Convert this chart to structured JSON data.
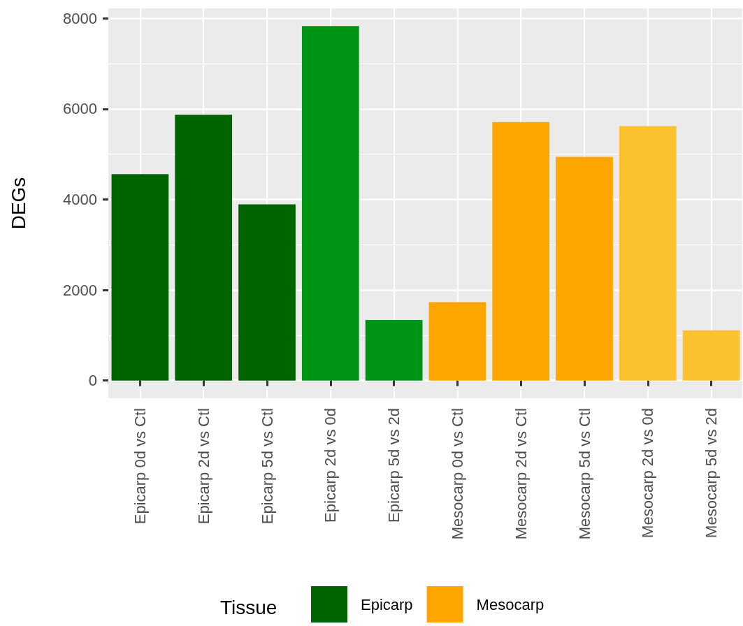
{
  "chart_data": {
    "type": "bar",
    "ylabel": "DEGs",
    "legend_title": "Tissue",
    "categories": [
      "Epicarp 0d vs Ctl",
      "Epicarp 2d vs Ctl",
      "Epicarp 5d vs Ctl",
      "Epicarp 2d vs 0d",
      "Epicarp 5d vs 2d",
      "Mesocarp 0d vs Ctl",
      "Mesocarp 2d vs Ctl",
      "Mesocarp 5d vs Ctl",
      "Mesocarp 2d vs 0d",
      "Mesocarp 5d vs 2d"
    ],
    "series": [
      {
        "name": "Epicarp",
        "color": "#006400",
        "colors": [
          "#006400",
          "#006400",
          "#006400",
          "#009414",
          "#009414",
          null,
          null,
          null,
          null,
          null
        ],
        "values": [
          4560,
          5870,
          3890,
          7830,
          1340,
          null,
          null,
          null,
          null,
          null
        ]
      },
      {
        "name": "Mesocarp",
        "color": "#ffa500",
        "colors": [
          null,
          null,
          null,
          null,
          null,
          "#ffa500",
          "#ffa500",
          "#ffa500",
          "#fcc12e",
          "#fcc12e"
        ],
        "values": [
          null,
          null,
          null,
          null,
          null,
          1730,
          5710,
          4940,
          5620,
          1110
        ]
      }
    ],
    "ylim": [
      -390,
      8220
    ],
    "yticks": [
      0,
      2000,
      4000,
      6000,
      8000
    ],
    "grid": true,
    "legend": "bottom"
  }
}
